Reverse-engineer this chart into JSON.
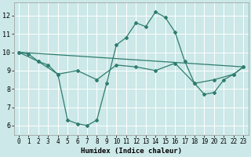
{
  "xlabel": "Humidex (Indice chaleur)",
  "bg_color": "#cce8e8",
  "grid_color": "#ffffff",
  "line_color": "#2e7d6e",
  "xlim": [
    -0.5,
    23.5
  ],
  "ylim": [
    5.5,
    12.7
  ],
  "yticks": [
    6,
    7,
    8,
    9,
    10,
    11,
    12
  ],
  "xticks": [
    0,
    1,
    2,
    3,
    4,
    5,
    6,
    7,
    8,
    9,
    10,
    11,
    12,
    13,
    14,
    15,
    16,
    17,
    18,
    19,
    20,
    21,
    22,
    23
  ],
  "series1": {
    "x": [
      0,
      1,
      2,
      3,
      4,
      5,
      6,
      7,
      8,
      9,
      10,
      11,
      12,
      13,
      14,
      15,
      16,
      17,
      18,
      19,
      20,
      21,
      22,
      23
    ],
    "y": [
      10.0,
      9.9,
      9.5,
      9.3,
      8.8,
      6.3,
      6.1,
      6.0,
      6.3,
      8.3,
      10.4,
      10.8,
      11.6,
      11.4,
      12.2,
      11.9,
      11.1,
      9.5,
      8.3,
      7.7,
      7.8,
      8.5,
      8.8,
      9.2
    ]
  },
  "series2": {
    "x": [
      0,
      23
    ],
    "y": [
      10.0,
      9.2
    ]
  },
  "series3": {
    "x": [
      0,
      2,
      4,
      6,
      8,
      10,
      12,
      14,
      16,
      18,
      20,
      22,
      23
    ],
    "y": [
      10.0,
      9.5,
      8.8,
      9.0,
      8.5,
      9.3,
      9.2,
      9.0,
      9.4,
      8.3,
      8.5,
      8.8,
      9.2
    ]
  }
}
